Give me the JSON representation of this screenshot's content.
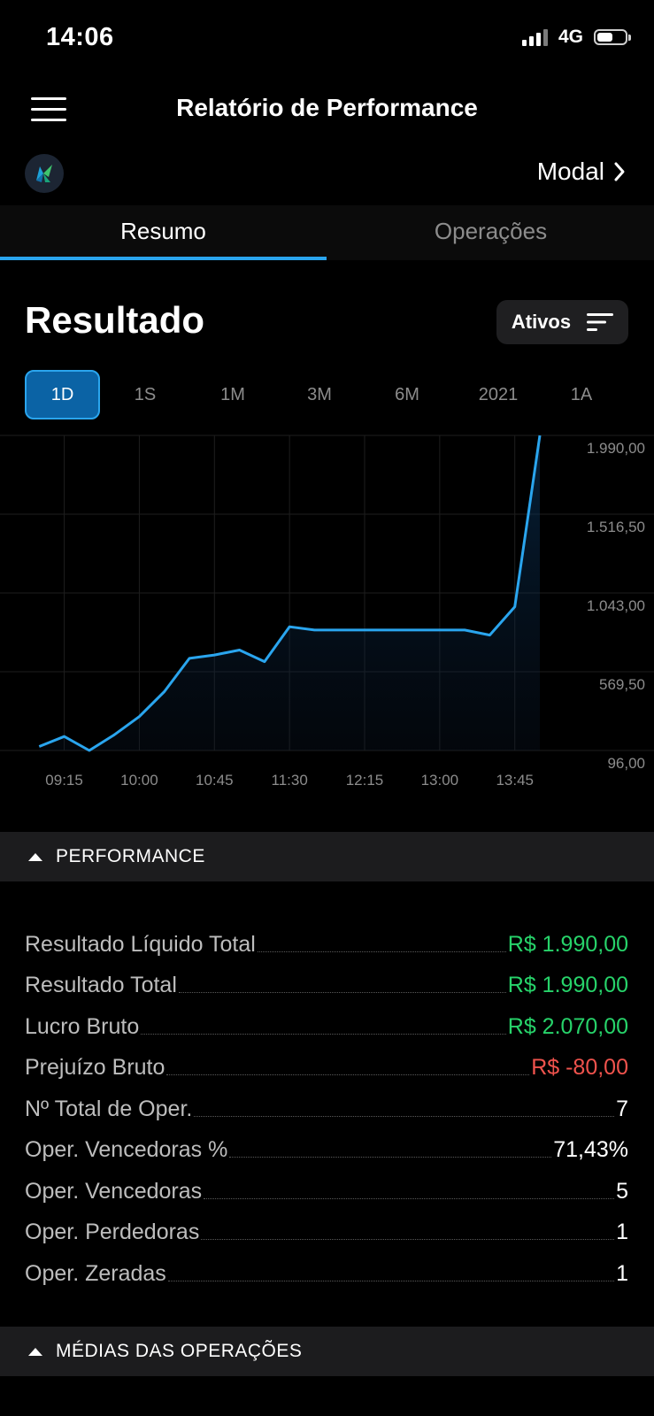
{
  "status": {
    "time": "14:06",
    "network": "4G",
    "battery_level": 0.55
  },
  "header": {
    "title": "Relatório de Performance",
    "menu_icon": "hamburger-menu-icon"
  },
  "broker": {
    "name": "Modal",
    "logo_icon": "broker-logo-icon",
    "chevron_icon": "chevron-right-icon"
  },
  "tabs": [
    {
      "label": "Resumo",
      "active": true
    },
    {
      "label": "Operações",
      "active": false
    }
  ],
  "result": {
    "title": "Resultado",
    "filter_label": "Ativos",
    "filter_icon": "sort-filter-icon"
  },
  "periods": [
    {
      "label": "1D",
      "active": true
    },
    {
      "label": "1S",
      "active": false
    },
    {
      "label": "1M",
      "active": false
    },
    {
      "label": "3M",
      "active": false
    },
    {
      "label": "6M",
      "active": false
    },
    {
      "label": "2021",
      "active": false
    },
    {
      "label": "1A",
      "active": false
    }
  ],
  "chart_data": {
    "type": "area",
    "x_ticks": [
      "09:15",
      "10:00",
      "10:45",
      "11:30",
      "12:15",
      "13:00",
      "13:45"
    ],
    "y_ticks": [
      "1.990,00",
      "1.516,50",
      "1.043,00",
      "569,50",
      "96,00"
    ],
    "ylim": [
      96,
      1990
    ],
    "x_range_minutes": [
      525,
      840
    ],
    "grid": true,
    "line_color": "#2aa5ee",
    "series": [
      {
        "points": [
          [
            "09:00",
            120
          ],
          [
            "09:15",
            180
          ],
          [
            "09:30",
            96
          ],
          [
            "09:45",
            190
          ],
          [
            "10:00",
            300
          ],
          [
            "10:15",
            450
          ],
          [
            "10:30",
            650
          ],
          [
            "10:45",
            670
          ],
          [
            "11:00",
            700
          ],
          [
            "11:15",
            630
          ],
          [
            "11:30",
            840
          ],
          [
            "11:45",
            820
          ],
          [
            "12:00",
            820
          ],
          [
            "12:15",
            820
          ],
          [
            "12:30",
            820
          ],
          [
            "12:45",
            820
          ],
          [
            "13:00",
            820
          ],
          [
            "13:15",
            820
          ],
          [
            "13:30",
            790
          ],
          [
            "13:45",
            960
          ],
          [
            "14:00",
            1990
          ]
        ]
      }
    ]
  },
  "performance": {
    "section_label": "PERFORMANCE",
    "rows": [
      {
        "label": "Resultado Líquido Total",
        "value": "R$ 1.990,00",
        "tone": "pos"
      },
      {
        "label": "Resultado Total",
        "value": "R$ 1.990,00",
        "tone": "pos"
      },
      {
        "label": "Lucro Bruto",
        "value": "R$ 2.070,00",
        "tone": "pos"
      },
      {
        "label": "Prejuízo Bruto",
        "value": "R$ -80,00",
        "tone": "neg"
      },
      {
        "label": "Nº Total de Oper.",
        "value": "7",
        "tone": "neu"
      },
      {
        "label": "Oper. Vencedoras %",
        "value": "71,43%",
        "tone": "neu"
      },
      {
        "label": "Oper. Vencedoras",
        "value": "5",
        "tone": "neu"
      },
      {
        "label": "Oper. Perdedoras",
        "value": "1",
        "tone": "neu"
      },
      {
        "label": "Oper. Zeradas",
        "value": "1",
        "tone": "neu"
      }
    ]
  },
  "averages": {
    "section_label": "MÉDIAS DAS OPERAÇÕES"
  },
  "colors": {
    "accent": "#2aa5ee",
    "positive": "#27d36a",
    "negative": "#f0534d",
    "section_bg": "#1c1c1e"
  }
}
